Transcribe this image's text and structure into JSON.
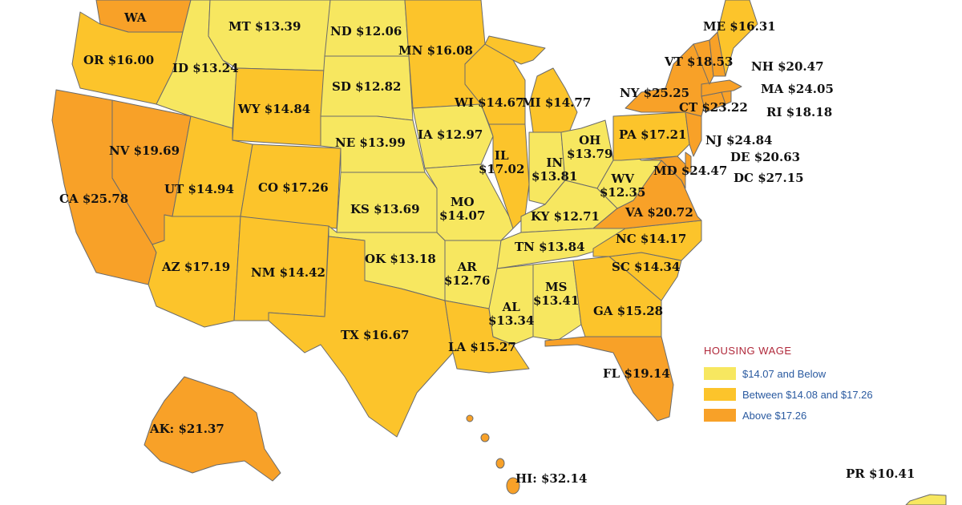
{
  "legend": {
    "title": "HOUSING WAGE",
    "items": [
      {
        "label": "$14.07 and Below",
        "color": "#f7e760"
      },
      {
        "label": "Between $14.08 and $17.26",
        "color": "#fcc42b"
      },
      {
        "label": "Above $17.26",
        "color": "#f8a128"
      }
    ]
  },
  "states": [
    {
      "abbr": "WA",
      "wage": "",
      "tier": "high"
    },
    {
      "abbr": "OR",
      "wage": "$16.00",
      "tier": "mid"
    },
    {
      "abbr": "CA",
      "wage": "$25.78",
      "tier": "high"
    },
    {
      "abbr": "NV",
      "wage": "$19.69",
      "tier": "high"
    },
    {
      "abbr": "ID",
      "wage": "$13.24",
      "tier": "low"
    },
    {
      "abbr": "MT",
      "wage": "$13.39",
      "tier": "low"
    },
    {
      "abbr": "WY",
      "wage": "$14.84",
      "tier": "mid"
    },
    {
      "abbr": "UT",
      "wage": "$14.94",
      "tier": "mid"
    },
    {
      "abbr": "AZ",
      "wage": "$17.19",
      "tier": "mid"
    },
    {
      "abbr": "CO",
      "wage": "$17.26",
      "tier": "mid"
    },
    {
      "abbr": "NM",
      "wage": "$14.42",
      "tier": "mid"
    },
    {
      "abbr": "ND",
      "wage": "$12.06",
      "tier": "low"
    },
    {
      "abbr": "SD",
      "wage": "$12.82",
      "tier": "low"
    },
    {
      "abbr": "NE",
      "wage": "$13.99",
      "tier": "low"
    },
    {
      "abbr": "KS",
      "wage": "$13.69",
      "tier": "low"
    },
    {
      "abbr": "OK",
      "wage": "$13.18",
      "tier": "low"
    },
    {
      "abbr": "TX",
      "wage": "$16.67",
      "tier": "mid"
    },
    {
      "abbr": "MN",
      "wage": "$16.08",
      "tier": "mid"
    },
    {
      "abbr": "IA",
      "wage": "$12.97",
      "tier": "low"
    },
    {
      "abbr": "MO",
      "wage": "$14.07",
      "tier": "low"
    },
    {
      "abbr": "AR",
      "wage": "$12.76",
      "tier": "low"
    },
    {
      "abbr": "LA",
      "wage": "$15.27",
      "tier": "mid"
    },
    {
      "abbr": "WI",
      "wage": "$14.67",
      "tier": "mid"
    },
    {
      "abbr": "IL",
      "wage": "$17.02",
      "tier": "mid"
    },
    {
      "abbr": "MI",
      "wage": "$14.77",
      "tier": "mid"
    },
    {
      "abbr": "IN",
      "wage": "$13.81",
      "tier": "low"
    },
    {
      "abbr": "OH",
      "wage": "$13.79",
      "tier": "low"
    },
    {
      "abbr": "KY",
      "wage": "$12.71",
      "tier": "low"
    },
    {
      "abbr": "TN",
      "wage": "$13.84",
      "tier": "low"
    },
    {
      "abbr": "MS",
      "wage": "$13.41",
      "tier": "low"
    },
    {
      "abbr": "AL",
      "wage": "$13.34",
      "tier": "low"
    },
    {
      "abbr": "GA",
      "wage": "$15.28",
      "tier": "mid"
    },
    {
      "abbr": "FL",
      "wage": "$19.14",
      "tier": "high"
    },
    {
      "abbr": "SC",
      "wage": "$14.34",
      "tier": "mid"
    },
    {
      "abbr": "NC",
      "wage": "$14.17",
      "tier": "mid"
    },
    {
      "abbr": "VA",
      "wage": "$20.72",
      "tier": "high"
    },
    {
      "abbr": "WV",
      "wage": "$12.35",
      "tier": "low"
    },
    {
      "abbr": "PA",
      "wage": "$17.21",
      "tier": "mid"
    },
    {
      "abbr": "NY",
      "wage": "$25.25",
      "tier": "high"
    },
    {
      "abbr": "VT",
      "wage": "$18.53",
      "tier": "high"
    },
    {
      "abbr": "NH",
      "wage": "$20.47",
      "tier": "high"
    },
    {
      "abbr": "ME",
      "wage": "$16.31",
      "tier": "mid"
    },
    {
      "abbr": "MA",
      "wage": "$24.05",
      "tier": "high"
    },
    {
      "abbr": "RI",
      "wage": "$18.18",
      "tier": "high"
    },
    {
      "abbr": "CT",
      "wage": "$23.22",
      "tier": "high"
    },
    {
      "abbr": "NJ",
      "wage": "$24.84",
      "tier": "high"
    },
    {
      "abbr": "DE",
      "wage": "$20.63",
      "tier": "high"
    },
    {
      "abbr": "MD",
      "wage": "$24.47",
      "tier": "high"
    },
    {
      "abbr": "DC",
      "wage": "$27.15",
      "tier": "high"
    },
    {
      "abbr": "AK:",
      "wage": "$21.37",
      "tier": "high"
    },
    {
      "abbr": "HI:",
      "wage": "$32.14",
      "tier": "high"
    },
    {
      "abbr": "PR",
      "wage": "$10.41",
      "tier": "low"
    }
  ]
}
